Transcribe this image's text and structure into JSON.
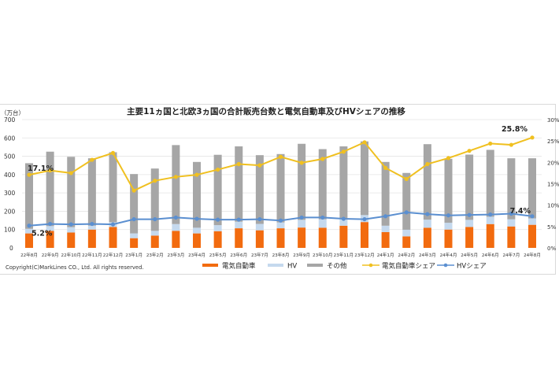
{
  "chart_data": {
    "type": "bar+line",
    "title": "主要11ヵ国と北欧3ヵ国の合計販売台数と電気自動車及びHVシェアの推移",
    "y_unit_label": "（万台）",
    "ylim": [
      0,
      700
    ],
    "yticks": [
      0,
      100,
      200,
      300,
      400,
      500,
      600,
      700
    ],
    "y2lim": [
      0,
      30
    ],
    "y2ticks": [
      "0%",
      "5%",
      "10%",
      "15%",
      "20%",
      "25%",
      "30%"
    ],
    "grid": true,
    "legend_position": "bottom",
    "categories": [
      "22年8月",
      "22年9月",
      "22年10月",
      "22年11月",
      "22年12月",
      "23年1月",
      "23年2月",
      "23年3月",
      "23年4月",
      "23年5月",
      "23年6月",
      "23年7月",
      "23年8月",
      "23年9月",
      "23年10月",
      "23年11月",
      "23年12月",
      "24年1月",
      "24年2月",
      "24年3月",
      "24年4月",
      "24年5月",
      "24年6月",
      "24年7月",
      "24年8月"
    ],
    "series": [
      {
        "name": "電気自動車",
        "kind": "stacked-bar",
        "axis": "left",
        "color": "#f26b0f",
        "values": [
          79,
          93,
          84,
          100,
          114,
          53,
          67,
          93,
          79,
          91,
          107,
          96,
          107,
          111,
          110,
          121,
          141,
          86,
          63,
          110,
          100,
          114,
          130,
          117,
          126
        ]
      },
      {
        "name": "HV",
        "kind": "stacked-bar",
        "axis": "left",
        "color": "#c5d9ee",
        "values": [
          25,
          26,
          29,
          21,
          26,
          26,
          26,
          37,
          31,
          33,
          36,
          35,
          32,
          42,
          46,
          40,
          38,
          35,
          36,
          44,
          37,
          39,
          40,
          39,
          35
        ]
      },
      {
        "name": "その他",
        "kind": "stacked-bar",
        "axis": "left",
        "color": "#a6a6a6",
        "values": [
          358,
          406,
          384,
          368,
          382,
          324,
          340,
          431,
          359,
          384,
          411,
          375,
          373,
          415,
          383,
          393,
          402,
          348,
          310,
          412,
          349,
          356,
          365,
          333,
          328
        ]
      },
      {
        "name": "電気自動車シェア",
        "kind": "line",
        "axis": "right",
        "color": "#f0c020",
        "values": [
          17.1,
          18.1,
          17.5,
          20.6,
          22.2,
          13.4,
          15.7,
          16.6,
          17.1,
          18.3,
          19.6,
          19.3,
          21.3,
          19.9,
          20.8,
          22.5,
          24.7,
          18.7,
          16.1,
          19.6,
          21.0,
          22.7,
          24.4,
          24.1,
          25.8
        ]
      },
      {
        "name": "HVシェア",
        "kind": "line",
        "axis": "right",
        "color": "#5b8fd0",
        "values": [
          5.2,
          5.6,
          5.5,
          5.6,
          5.5,
          6.7,
          6.7,
          7.1,
          6.8,
          6.6,
          6.6,
          6.7,
          6.4,
          7.1,
          7.1,
          6.8,
          6.7,
          7.4,
          8.3,
          7.9,
          7.6,
          7.7,
          7.8,
          8.0,
          7.4
        ]
      }
    ],
    "annotations": [
      {
        "text": "17.1%",
        "series": "電気自動車シェア",
        "index": 0
      },
      {
        "text": "5.2%",
        "series": "HVシェア",
        "index": 0
      },
      {
        "text": "25.8%",
        "series": "電気自動車シェア",
        "index": 24
      },
      {
        "text": "7.4%",
        "series": "HVシェア",
        "index": 24
      }
    ],
    "copyright": "Copyright(C)MarkLines CO., Ltd. All rights reserved."
  }
}
